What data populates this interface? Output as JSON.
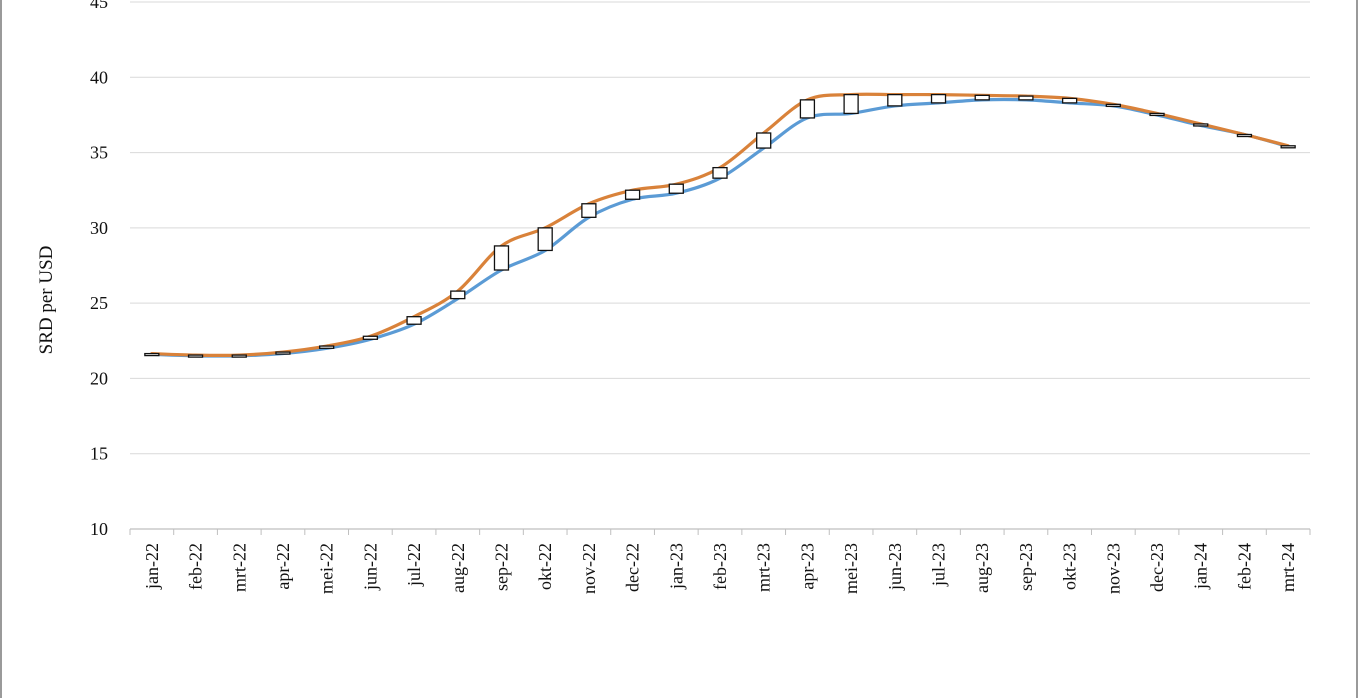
{
  "chart_data": {
    "type": "line",
    "title": "",
    "xlabel": "",
    "ylabel": "SRD per USD",
    "ylim": [
      10,
      45
    ],
    "yticks": [
      10,
      15,
      20,
      25,
      30,
      35,
      40,
      45
    ],
    "grid": true,
    "legend": "none",
    "categories": [
      "jan-22",
      "feb-22",
      "mrt-22",
      "apr-22",
      "mei-22",
      "jun-22",
      "jul-22",
      "aug-22",
      "sep-22",
      "okt-22",
      "nov-22",
      "dec-22",
      "jan-23",
      "feb-23",
      "mrt-23",
      "apr-23",
      "mei-23",
      "jun-23",
      "jul-23",
      "aug-23",
      "sep-23",
      "okt-23",
      "nov-23",
      "dec-23",
      "jan-24",
      "feb-24",
      "mrt-24"
    ],
    "series": [
      {
        "color": "#5b9bd5",
        "values": [
          21.6,
          21.5,
          21.5,
          21.65,
          22.0,
          22.6,
          23.6,
          25.3,
          27.2,
          28.5,
          30.7,
          31.9,
          32.3,
          33.3,
          35.3,
          37.3,
          37.6,
          38.1,
          38.3,
          38.5,
          38.5,
          38.3,
          38.1,
          37.5,
          36.8,
          36.2,
          35.4
        ]
      },
      {
        "color": "#d9823a",
        "values": [
          21.65,
          21.55,
          21.55,
          21.75,
          22.15,
          22.8,
          24.1,
          25.8,
          28.8,
          30.0,
          31.6,
          32.5,
          32.9,
          34.0,
          36.3,
          38.5,
          38.85,
          38.85,
          38.85,
          38.8,
          38.75,
          38.6,
          38.2,
          37.6,
          36.9,
          36.2,
          35.45
        ]
      }
    ]
  }
}
